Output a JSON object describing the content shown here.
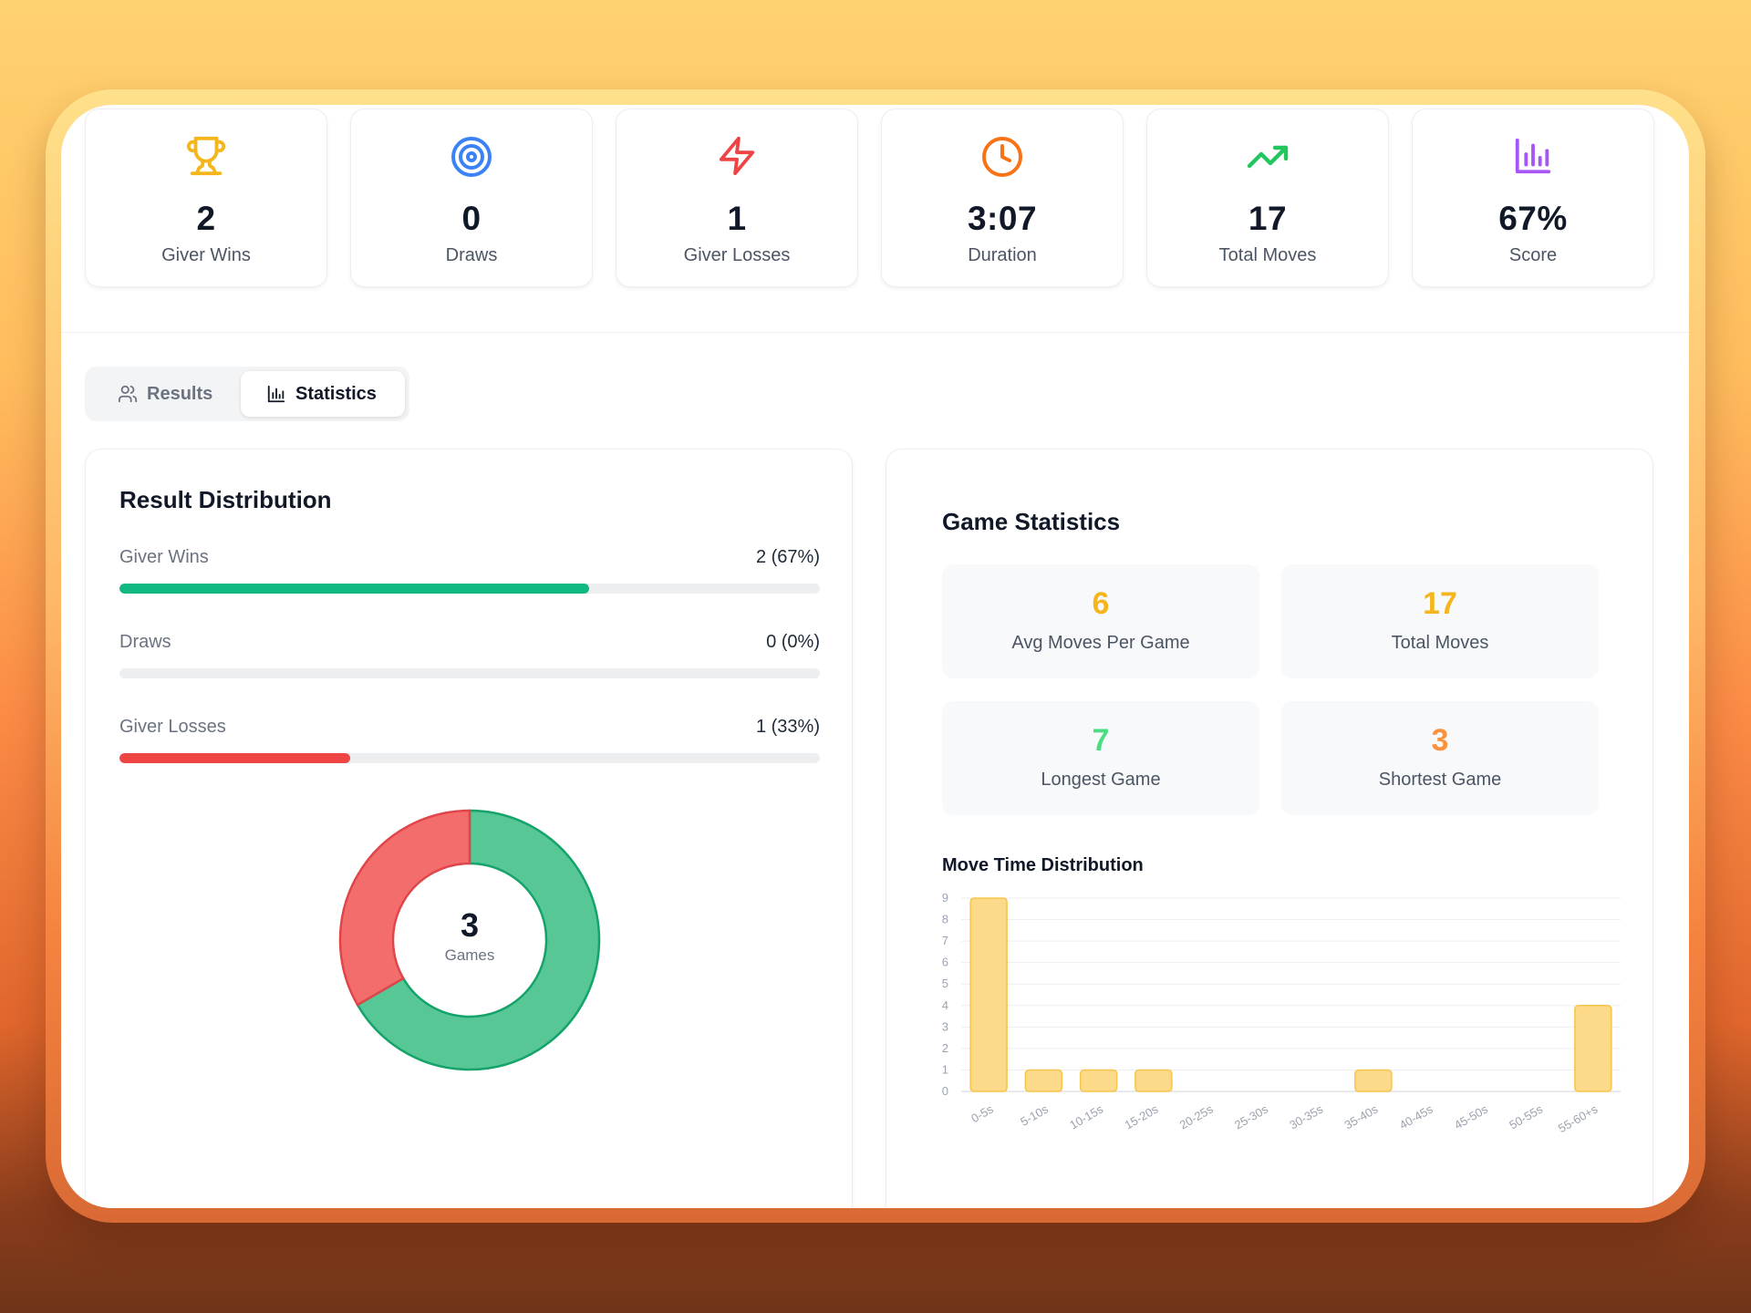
{
  "colors": {
    "trophy": "#f5b51c",
    "target": "#3b82f6",
    "bolt": "#ef4444",
    "clock": "#f97316",
    "trend": "#22c55e",
    "chart": "#a855f7",
    "win": "#10b981",
    "loss": "#ef4444",
    "bar_fill": "#fdd98a",
    "bar_stroke": "#f6c54a",
    "avg": "#f5b51c",
    "total": "#f5b51c",
    "longest": "#4ade80",
    "shortest": "#fb923c"
  },
  "stats": [
    {
      "icon": "trophy-icon",
      "value": "2",
      "label": "Giver Wins"
    },
    {
      "icon": "target-icon",
      "value": "0",
      "label": "Draws"
    },
    {
      "icon": "lightning-icon",
      "value": "1",
      "label": "Giver Losses"
    },
    {
      "icon": "clock-icon",
      "value": "3:07",
      "label": "Duration"
    },
    {
      "icon": "trending-up-icon",
      "value": "17",
      "label": "Total Moves"
    },
    {
      "icon": "bar-chart-icon",
      "value": "67%",
      "label": "Score"
    }
  ],
  "tabs": {
    "results": "Results",
    "statistics": "Statistics",
    "active": "statistics"
  },
  "result_distribution": {
    "title": "Result Distribution",
    "rows": [
      {
        "label": "Giver Wins",
        "value": "2 (67%)",
        "percent": 67,
        "color": "#10b981"
      },
      {
        "label": "Draws",
        "value": "0 (0%)",
        "percent": 0,
        "color": "#9ca3af"
      },
      {
        "label": "Giver Losses",
        "value": "1 (33%)",
        "percent": 33,
        "color": "#ef4444"
      }
    ],
    "donut": {
      "total": "3",
      "label": "Games",
      "segments": [
        {
          "name": "Giver Wins",
          "value": 2,
          "fill": "#57c796",
          "stroke": "#14a36a"
        },
        {
          "name": "Giver Losses",
          "value": 1,
          "fill": "#f46d6d",
          "stroke": "#e0454a"
        }
      ]
    }
  },
  "game_statistics": {
    "title": "Game Statistics",
    "tiles": [
      {
        "value": "6",
        "label": "Avg Moves Per Game",
        "color": "#f5b51c"
      },
      {
        "value": "17",
        "label": "Total Moves",
        "color": "#f5b51c"
      },
      {
        "value": "7",
        "label": "Longest Game",
        "color": "#4ade80"
      },
      {
        "value": "3",
        "label": "Shortest Game",
        "color": "#fb923c"
      }
    ],
    "move_time_title": "Move Time Distribution"
  },
  "chart_data": {
    "type": "bar",
    "title": "Move Time Distribution",
    "categories": [
      "0-5s",
      "5-10s",
      "10-15s",
      "15-20s",
      "20-25s",
      "25-30s",
      "30-35s",
      "35-40s",
      "40-45s",
      "45-50s",
      "50-55s",
      "55-60+s"
    ],
    "values": [
      9,
      1,
      1,
      1,
      0,
      0,
      0,
      1,
      0,
      0,
      0,
      4
    ],
    "xlabel": "",
    "ylabel": "",
    "ylim": [
      0,
      9
    ],
    "yticks": [
      0,
      1,
      2,
      3,
      4,
      5,
      6,
      7,
      8,
      9
    ],
    "grid": true
  }
}
